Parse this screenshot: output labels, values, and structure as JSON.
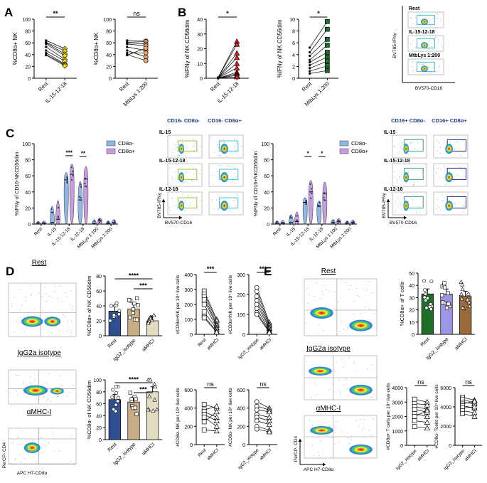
{
  "figure": {
    "panel_letters": [
      "A",
      "B",
      "C",
      "D",
      "E"
    ],
    "colors": {
      "axis": "#000000",
      "yellow": "#f2e400",
      "salmon": "#f2a86b",
      "red": "#e8202a",
      "green": "#1f6e2a",
      "blue_fill": "#8fb7e4",
      "purple_fill": "#c79de0",
      "navy": "#2f4f8f",
      "tan": "#c8ad84",
      "cream": "#e2dcc0",
      "lavender": "#9b96e6",
      "brown": "#9a6a3a",
      "flow_header": "#1a3a8a",
      "gate_green": "#9fbf3a",
      "gate_cyan": "#45c0d8",
      "gate_teal": "#3aa07a",
      "gate_navy": "#1a2a8a"
    }
  },
  "chart_data": [
    {
      "id": "A1",
      "type": "paired-dot",
      "panel": "A",
      "ylabel": "%CD8α+ NK",
      "ylim": [
        0,
        100
      ],
      "yticks": [
        "0",
        "20",
        "40",
        "60",
        "80",
        "100"
      ],
      "categories": [
        "Rest",
        "IL-15-12-18"
      ],
      "significance": "**",
      "pairs": [
        [
          64,
          50
        ],
        [
          61,
          46
        ],
        [
          60,
          41
        ],
        [
          58,
          38
        ],
        [
          53,
          32
        ],
        [
          47,
          29
        ],
        [
          43,
          24
        ],
        [
          40,
          23
        ],
        [
          39,
          21
        ]
      ],
      "colors": [
        "#000000",
        "#f2e400"
      ]
    },
    {
      "id": "A2",
      "type": "paired-dot",
      "panel": "A",
      "ylabel": "%CD8α+ NK",
      "ylim": [
        0,
        100
      ],
      "yticks": [
        "0",
        "20",
        "40",
        "60",
        "80",
        "100"
      ],
      "categories": [
        "Rest",
        "MtbLys 1:200"
      ],
      "significance": "ns",
      "pairs": [
        [
          64,
          63
        ],
        [
          61,
          62
        ],
        [
          60,
          58
        ],
        [
          58,
          55
        ],
        [
          53,
          47
        ],
        [
          47,
          36
        ],
        [
          43,
          43
        ],
        [
          40,
          30
        ],
        [
          39,
          51
        ]
      ],
      "colors": [
        "#000000",
        "#f2a86b"
      ]
    },
    {
      "id": "B1",
      "type": "paired-dot",
      "panel": "B",
      "ylabel": "%IFNγ of NK CD56dim",
      "ylim": [
        0,
        40
      ],
      "yticks": [
        "0",
        "10",
        "20",
        "30",
        "40"
      ],
      "categories": [
        "Rest",
        "IL-15-12-18"
      ],
      "significance": "*",
      "pairs": [
        [
          0.5,
          25
        ],
        [
          0.4,
          23
        ],
        [
          0.3,
          17
        ],
        [
          0.3,
          14
        ],
        [
          0.2,
          10
        ],
        [
          0.2,
          7
        ],
        [
          0.1,
          4
        ],
        [
          0.1,
          3
        ],
        [
          0.1,
          2
        ],
        [
          0.1,
          1
        ]
      ],
      "colors": [
        "#000000",
        "#e8202a"
      ]
    },
    {
      "id": "B2",
      "type": "paired-dot",
      "panel": "B",
      "ylabel": "%IFNγ of NK CD56dim",
      "ylim": [
        0,
        10
      ],
      "yticks": [
        "0",
        "2",
        "4",
        "6",
        "8",
        "10"
      ],
      "categories": [
        "Rest",
        "MtbLys 1:200"
      ],
      "significance": "*",
      "pairs": [
        [
          5.2,
          9.6
        ],
        [
          4.4,
          8.3
        ],
        [
          3.8,
          6.6
        ],
        [
          3.1,
          5.6
        ],
        [
          2.7,
          4.4
        ],
        [
          2.2,
          3.6
        ],
        [
          1.7,
          2.9
        ],
        [
          1.2,
          2.1
        ],
        [
          0.8,
          1.3
        ]
      ],
      "colors": [
        "#000000",
        "#1f6e2a"
      ]
    },
    {
      "id": "C1",
      "type": "violin",
      "panel": "C",
      "ylabel": "%IFNγ of CD16-NKCD56dim",
      "ylim": [
        0,
        100
      ],
      "yticks": [
        "0",
        "20",
        "40",
        "60",
        "80",
        "100"
      ],
      "categories": [
        "Rest",
        "IL-15",
        "IL-15-12-18",
        "IL-12-18",
        "MtbLys 1:100",
        "MtbLys 1:200"
      ],
      "series": [
        {
          "name": "CD8α-",
          "color": "#8fb7e4",
          "medians": [
            1,
            2,
            55,
            30,
            1,
            1
          ],
          "maxes": [
            3,
            28,
            66,
            60,
            6,
            4
          ]
        },
        {
          "name": "CD8α+",
          "color": "#c79de0",
          "medians": [
            1,
            6,
            62,
            56,
            4,
            2
          ],
          "maxes": [
            4,
            36,
            78,
            76,
            8,
            6
          ]
        }
      ],
      "significance": [
        {
          "category": "IL-15-12-18",
          "label": "***"
        },
        {
          "category": "IL-12-18",
          "label": "**"
        }
      ]
    },
    {
      "id": "C2",
      "type": "violin",
      "panel": "C",
      "ylabel": "%IFNγ of CD16+NKCD56dim",
      "ylim": [
        0,
        100
      ],
      "yticks": [
        "0",
        "20",
        "40",
        "60",
        "80",
        "100"
      ],
      "categories": [
        "Rest",
        "IL-15",
        "IL-15-12-18",
        "IL-12-18",
        "MtbLys 1:100",
        "MtbLys 1:200"
      ],
      "series": [
        {
          "name": "CD8α-",
          "color": "#8fb7e4",
          "medians": [
            1,
            2,
            27,
            22,
            2,
            1
          ],
          "maxes": [
            4,
            14,
            34,
            30,
            6,
            4
          ]
        },
        {
          "name": "CD8α+",
          "color": "#c79de0",
          "medians": [
            1,
            3,
            40,
            38,
            3,
            2
          ],
          "maxes": [
            5,
            18,
            58,
            56,
            7,
            5
          ]
        }
      ],
      "significance": [
        {
          "category": "IL-15-12-18",
          "label": "*"
        },
        {
          "category": "IL-12-18",
          "label": "*"
        }
      ]
    },
    {
      "id": "D1",
      "type": "bar",
      "panel": "D",
      "ylabel": "%CD8α+ of NK CD56dim",
      "ylim": [
        0,
        80
      ],
      "yticks": [
        "0",
        "20",
        "40",
        "60",
        "80"
      ],
      "categories": [
        "Rest",
        "IgG2_isotype",
        "aMHCI"
      ],
      "values": [
        33,
        36,
        20
      ],
      "colors": [
        "#2f4f8f",
        "#c8ad84",
        "#e2dcc0"
      ],
      "significance": [
        {
          "from": 0,
          "to": 2,
          "label": "****"
        },
        {
          "from": 1,
          "to": 2,
          "label": "***"
        }
      ]
    },
    {
      "id": "D2",
      "type": "paired-dot",
      "panel": "D",
      "ylabel": "#CD8α+NK per 10⁴ live cells",
      "ylim": [
        0,
        400
      ],
      "yticks": [
        "0",
        "100",
        "200",
        "300",
        "400"
      ],
      "categories": [
        "Rest",
        "aMHCI"
      ],
      "significance": "***",
      "pairs": [
        [
          290,
          100
        ],
        [
          270,
          90
        ],
        [
          250,
          70
        ],
        [
          230,
          60
        ],
        [
          200,
          45
        ],
        [
          150,
          35
        ],
        [
          120,
          20
        ],
        [
          110,
          15
        ]
      ]
    },
    {
      "id": "D3",
      "type": "paired-dot",
      "panel": "D",
      "ylabel": "#CD8α+NK per 10⁴ live cells",
      "ylim": [
        0,
        300
      ],
      "yticks": [
        "0",
        "100",
        "200",
        "300"
      ],
      "categories": [
        "IgG2_isotype",
        "aMHCI"
      ],
      "significance": "***",
      "pairs": [
        [
          235,
          60
        ],
        [
          215,
          50
        ],
        [
          190,
          45
        ],
        [
          170,
          35
        ],
        [
          150,
          30
        ],
        [
          130,
          20
        ],
        [
          110,
          15
        ],
        [
          100,
          10
        ]
      ]
    },
    {
      "id": "D4",
      "type": "bar",
      "panel": "D",
      "ylabel": "%CD8α- of NK CD56dim",
      "ylim": [
        0,
        100
      ],
      "yticks": [
        "0",
        "20",
        "40",
        "60",
        "80",
        "100"
      ],
      "categories": [
        "Rest",
        "IgG2_isotype",
        "aMHCI"
      ],
      "values": [
        67,
        63,
        80
      ],
      "colors": [
        "#2f4f8f",
        "#c8ad84",
        "#e2dcc0"
      ],
      "significance": [
        {
          "from": 0,
          "to": 2,
          "label": "****"
        },
        {
          "from": 1,
          "to": 2,
          "label": "***"
        }
      ]
    },
    {
      "id": "D5",
      "type": "paired-dot",
      "panel": "D",
      "ylabel": "#CD8α- NK per 10⁴ live cells",
      "ylim": [
        0,
        600
      ],
      "yticks": [
        "0",
        "200",
        "400",
        "600"
      ],
      "categories": [
        "Rest",
        "aMHCI"
      ],
      "significance": "ns",
      "pairs": [
        [
          440,
          400
        ],
        [
          380,
          420
        ],
        [
          360,
          300
        ],
        [
          330,
          260
        ],
        [
          300,
          200
        ],
        [
          250,
          360
        ],
        [
          160,
          150
        ]
      ]
    },
    {
      "id": "D6",
      "type": "paired-dot",
      "panel": "D",
      "ylabel": "#CD8α- NK per 10⁴ live cells",
      "ylim": [
        0,
        600
      ],
      "yticks": [
        "0",
        "200",
        "400",
        "600"
      ],
      "categories": [
        "IgG2_isotype",
        "aMHCI"
      ],
      "significance": "ns",
      "pairs": [
        [
          470,
          400
        ],
        [
          420,
          380
        ],
        [
          380,
          360
        ],
        [
          330,
          300
        ],
        [
          300,
          260
        ],
        [
          260,
          220
        ],
        [
          200,
          160
        ],
        [
          170,
          140
        ]
      ]
    },
    {
      "id": "E1",
      "type": "bar",
      "panel": "E",
      "ylabel": "%CD8α+ of T cells",
      "ylim": [
        0,
        50
      ],
      "yticks": [
        "0",
        "10",
        "20",
        "30",
        "40",
        "50"
      ],
      "categories": [
        "Rest",
        "IgG2_isotype",
        "aMHCI"
      ],
      "values": [
        33,
        33,
        31
      ],
      "colors": [
        "#1f6e2a",
        "#9b96e6",
        "#9a6a3a"
      ]
    },
    {
      "id": "E2",
      "type": "paired-dot",
      "panel": "E",
      "ylabel": "#CD8α+ T cells per 10⁴ live cells",
      "ylim": [
        0,
        4000
      ],
      "yticks": [
        "0",
        "1000",
        "2000",
        "3000",
        "4000"
      ],
      "categories": [
        "IgG2_isotype",
        "aMHCI"
      ],
      "significance": "ns",
      "pairs": [
        [
          3200,
          3000
        ],
        [
          2900,
          2800
        ],
        [
          2700,
          2500
        ],
        [
          2500,
          2300
        ],
        [
          2200,
          2000
        ],
        [
          2000,
          2400
        ],
        [
          1700,
          1600
        ],
        [
          1300,
          1200
        ]
      ]
    },
    {
      "id": "E3",
      "type": "paired-dot",
      "panel": "E",
      "ylabel": "#CD8α- Tcells per 10⁴ live cells",
      "ylim": [
        0,
        6000
      ],
      "yticks": [
        "0",
        "2000",
        "4000",
        "6000"
      ],
      "categories": [
        "IgG2_isotype",
        "aMHCI"
      ],
      "significance": "ns",
      "pairs": [
        [
          5000,
          4700
        ],
        [
          4800,
          4400
        ],
        [
          4500,
          4300
        ],
        [
          4300,
          4600
        ],
        [
          4100,
          3900
        ],
        [
          3900,
          4000
        ],
        [
          3600,
          3400
        ],
        [
          3300,
          3000
        ]
      ]
    }
  ],
  "flow": {
    "B": {
      "titles": [
        "Rest",
        "IL-15-12-18",
        "MtbLys 1:200"
      ],
      "ylabel": "BV785-IFNγ",
      "xlabel": "BV570-CD16"
    },
    "C1": {
      "headers": [
        "CD16- CD8α-",
        "CD16- CD8α+"
      ],
      "rows": [
        "IL-15",
        "IL-15-12-18",
        "IL-12-18"
      ],
      "ylabel": "BV785-IFNγ",
      "xlabel": "BV570-CD16"
    },
    "C2": {
      "headers": [
        "CD16+ CD8α-",
        "CD16+ CD8α+"
      ],
      "rows": [
        "IL-15",
        "IL-15-12-18",
        "IL-12-18"
      ],
      "ylabel": "BV785-IFNγ",
      "xlabel": "BV570-CD16"
    },
    "D": {
      "titles": [
        "Rest",
        "IgG2a isotype",
        "αMHC-I"
      ],
      "ylabel": "PerCP- CD4",
      "xlabel": "APC H7-CD8α"
    },
    "E": {
      "titles": [
        "Rest",
        "IgG2a isotype",
        "αMHC-I"
      ],
      "ylabel": "PerCP- CD4",
      "xlabel": "APC H7-CD8α"
    }
  }
}
